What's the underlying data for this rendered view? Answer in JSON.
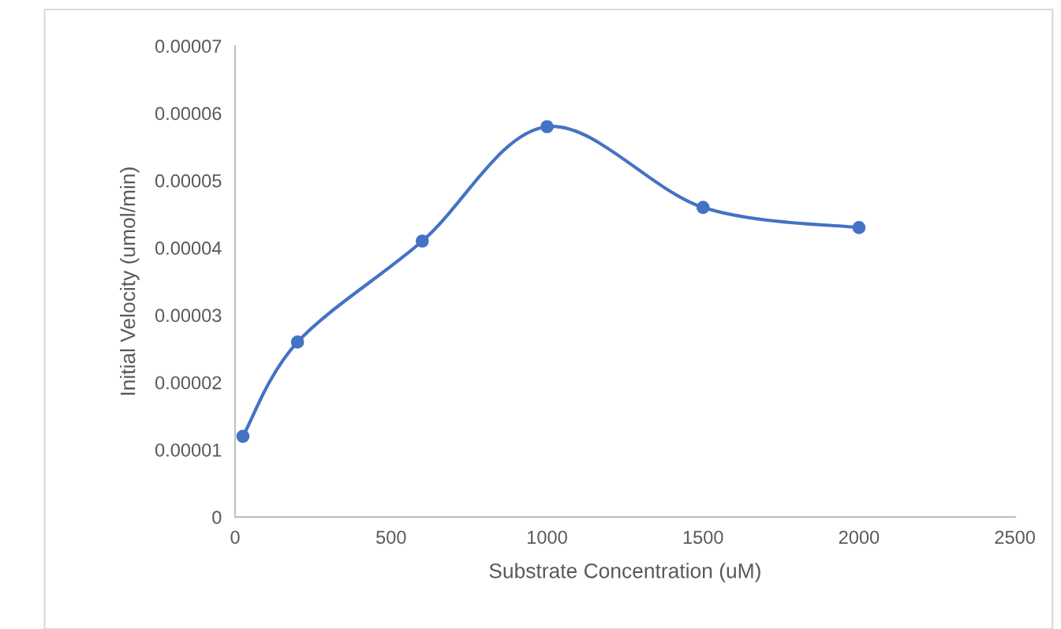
{
  "chart_data": {
    "type": "line",
    "xlabel": "Substrate Concentration (uM)",
    "ylabel": "Initial Velocity (umol/min)",
    "x": [
      25,
      200,
      600,
      1000,
      1500,
      2000
    ],
    "series": [
      {
        "color": "#4472c4",
        "values": [
          1.2e-05,
          2.6e-05,
          4.1e-05,
          5.8e-05,
          4.6e-05,
          4.3e-05
        ]
      }
    ],
    "xlim": [
      0,
      2500
    ],
    "xticks": [
      0,
      500,
      1000,
      1500,
      2000,
      2500
    ],
    "ylim": [
      0,
      7e-05
    ],
    "yticks": [
      0,
      {
        "value": 1e-05,
        "label": "0.00001"
      },
      {
        "value": 2e-05,
        "label": "0.00002"
      },
      {
        "value": 3e-05,
        "label": "0.00003"
      },
      {
        "value": 4e-05,
        "label": "0.00004"
      },
      {
        "value": 5e-05,
        "label": "0.00005"
      },
      {
        "value": 6e-05,
        "label": "0.00006"
      },
      {
        "value": 7e-05,
        "label": "0.00007"
      }
    ],
    "grid": false,
    "legend": false,
    "marker": "circle",
    "line_style": "solid"
  }
}
